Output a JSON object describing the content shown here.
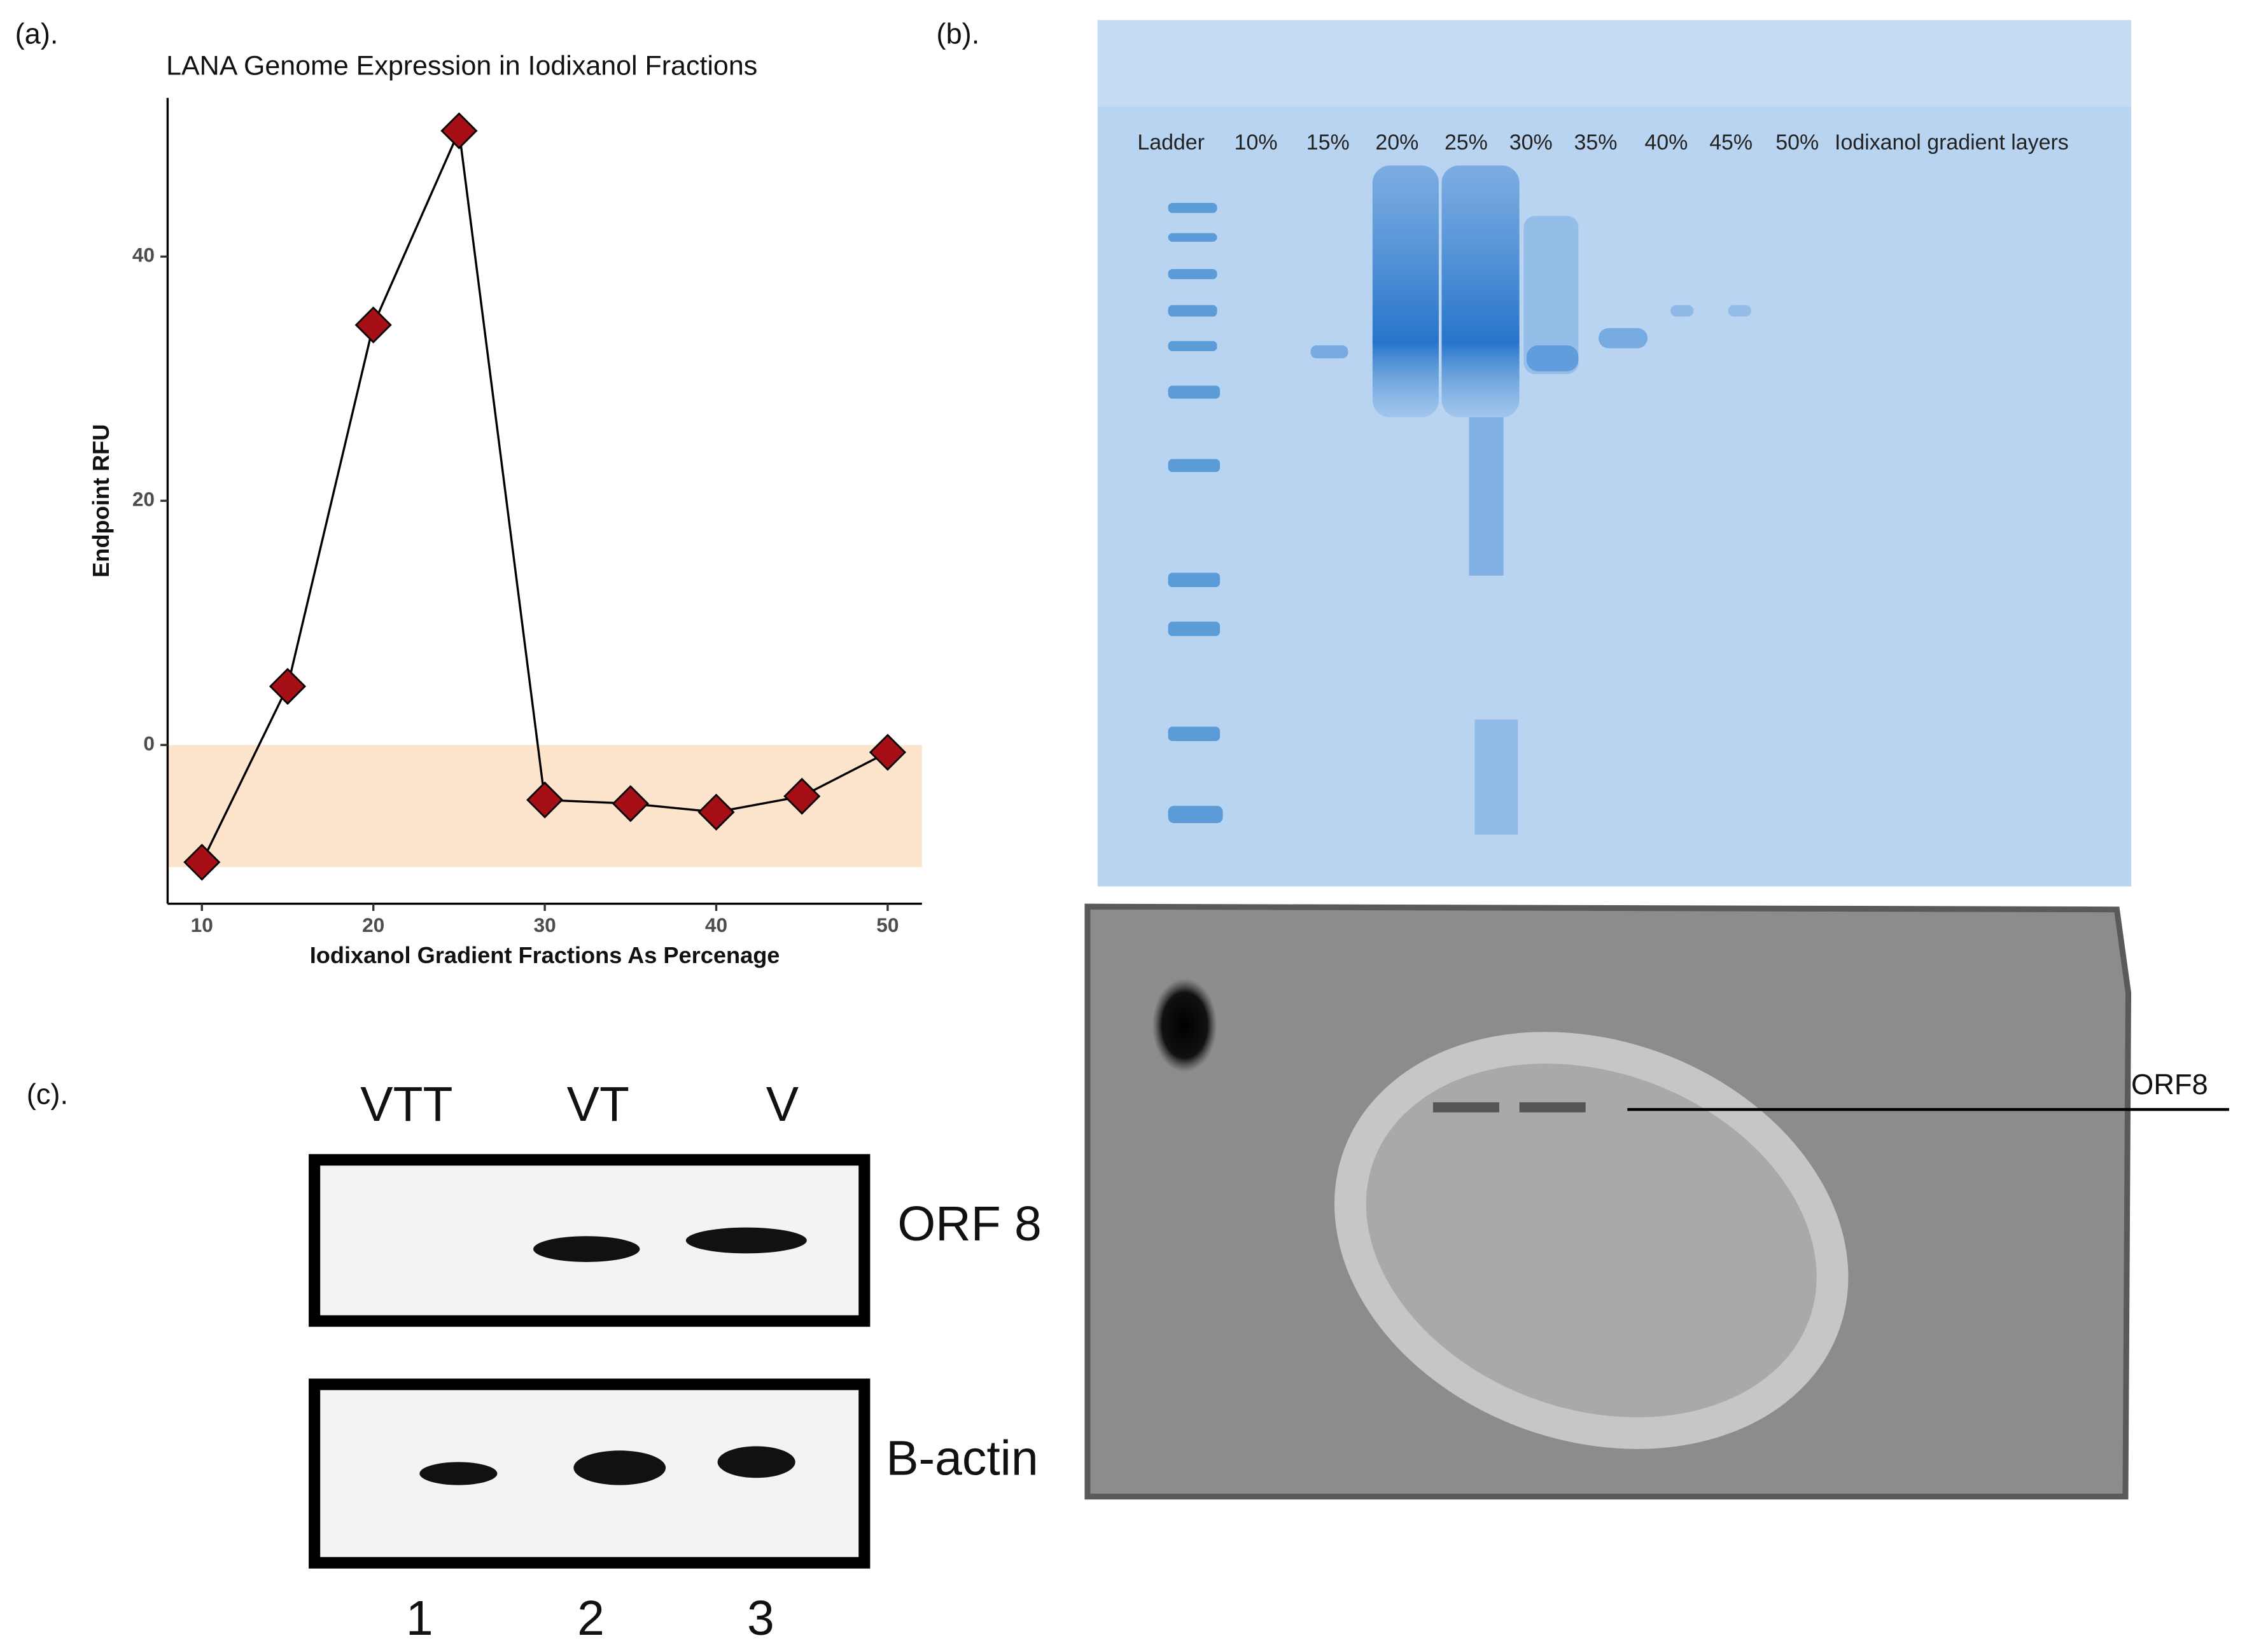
{
  "chart_data": {
    "type": "line",
    "title": "LANA Genome Expression in Iodixanol Fractions",
    "xlabel": "Iodixanol Gradient Fractions As Percenage",
    "ylabel": "Endpoint RFU",
    "x": [
      10,
      15,
      20,
      25,
      30,
      35,
      40,
      45,
      50
    ],
    "series": [
      {
        "color": "#a50f15",
        "values": [
          -9.6,
          4.8,
          34.4,
          50.3,
          -4.5,
          -4.8,
          -5.5,
          -4.2,
          -0.6
        ]
      }
    ],
    "line_color": "#000000",
    "shade": {
      "ymin": -10,
      "ymax": 0,
      "color": "#fde4cc"
    },
    "xlim": [
      8,
      52
    ],
    "ylim": [
      -13,
      53
    ],
    "xticks": [
      10,
      20,
      30,
      40,
      50
    ],
    "yticks": [
      0,
      20,
      40
    ],
    "grid": false
  },
  "panels": {
    "a": {
      "label": "(a)."
    },
    "b": {
      "label": "(b).",
      "lanes": [
        "Ladder",
        "10%",
        "15%",
        "20%",
        "25%",
        "30%",
        "35%",
        "40%",
        "45%",
        "50%",
        "Iodixanol gradient layers"
      ],
      "blot_label": "ORF8"
    },
    "c": {
      "label": "(c).",
      "columns": [
        "VTT",
        "VT",
        "V"
      ],
      "rows": [
        "ORF 8",
        "B-actin"
      ],
      "numbers": [
        "1",
        "2",
        "3"
      ]
    }
  }
}
